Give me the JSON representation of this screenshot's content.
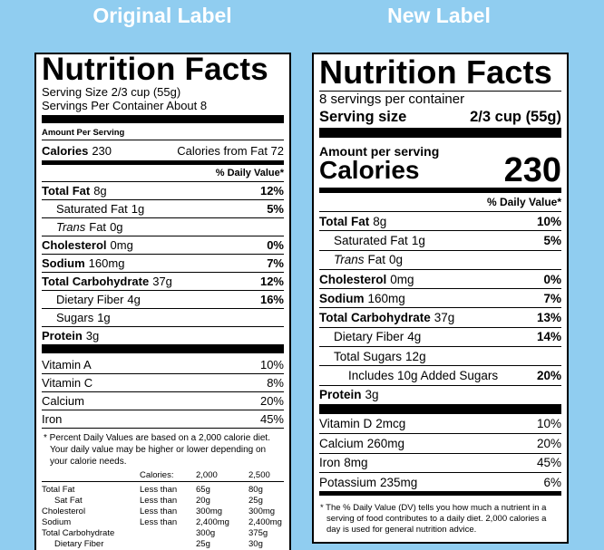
{
  "headers": {
    "original": "Original Label",
    "new": "New Label"
  },
  "original": {
    "title": "Nutrition Facts",
    "serving_size": "Serving Size 2/3 cup (55g)",
    "servings": "Servings Per Container About 8",
    "amount_per_serving": "Amount Per Serving",
    "calories_label": "Calories",
    "calories": "230",
    "calories_from_fat": "Calories from Fat 72",
    "dv_header": "% Daily Value*",
    "nutrients": [
      {
        "name": "Total Fat",
        "amount": "8g",
        "dv": "12%",
        "style": "main"
      },
      {
        "name": "Saturated Fat",
        "amount": "1g",
        "dv": "5%",
        "style": "sub"
      },
      {
        "italic": "Trans",
        "name": "Fat",
        "amount": "0g",
        "style": "sub"
      },
      {
        "name": "Cholesterol",
        "amount": "0mg",
        "dv": "0%",
        "style": "main"
      },
      {
        "name": "Sodium",
        "amount": "160mg",
        "dv": "7%",
        "style": "main"
      },
      {
        "name": "Total Carbohydrate",
        "amount": "37g",
        "dv": "12%",
        "style": "main"
      },
      {
        "name": "Dietary Fiber",
        "amount": "4g",
        "dv": "16%",
        "style": "sub"
      },
      {
        "name": "Sugars",
        "amount": "1g",
        "style": "sub"
      },
      {
        "name": "Protein",
        "amount": "3g",
        "style": "main"
      }
    ],
    "vitamins": [
      {
        "name": "Vitamin A",
        "dv": "10%"
      },
      {
        "name": "Vitamin C",
        "dv": "8%"
      },
      {
        "name": "Calcium",
        "dv": "20%"
      },
      {
        "name": "Iron",
        "dv": "45%"
      }
    ],
    "footnote": "* Percent Daily Values are based on a 2,000 calorie diet. Your daily value may be higher or lower depending on your calorie needs.",
    "dv_table": {
      "header": [
        "Calories:",
        "2,000",
        "2,500"
      ],
      "rows": [
        {
          "cells": [
            "Total Fat",
            "Less than",
            "65g",
            "80g"
          ]
        },
        {
          "cells": [
            "Sat Fat",
            "Less than",
            "20g",
            "25g"
          ],
          "indent": true
        },
        {
          "cells": [
            "Cholesterol",
            "Less than",
            "300mg",
            "300mg"
          ]
        },
        {
          "cells": [
            "Sodium",
            "Less than",
            "2,400mg",
            "2,400mg"
          ]
        },
        {
          "cells": [
            "Total Carbohydrate",
            null,
            "300g",
            "375g"
          ]
        },
        {
          "cells": [
            "Dietary Fiber",
            null,
            "25g",
            "30g"
          ],
          "indent": true
        }
      ]
    }
  },
  "new": {
    "title": "Nutrition Facts",
    "servings": "8 servings per container",
    "serving_size_label": "Serving size",
    "serving_size": "2/3 cup (55g)",
    "amount_per_serving": "Amount per serving",
    "calories_label": "Calories",
    "calories": "230",
    "dv_header": "% Daily Value*",
    "nutrients": [
      {
        "name": "Total Fat",
        "amount": "8g",
        "dv": "10%",
        "style": "main"
      },
      {
        "name": "Saturated Fat",
        "amount": "1g",
        "dv": "5%",
        "style": "sub"
      },
      {
        "italic": "Trans",
        "name": "Fat",
        "amount": "0g",
        "style": "sub"
      },
      {
        "name": "Cholesterol",
        "amount": "0mg",
        "dv": "0%",
        "style": "main"
      },
      {
        "name": "Sodium",
        "amount": "160mg",
        "dv": "7%",
        "style": "main"
      },
      {
        "name": "Total Carbohydrate",
        "amount": "37g",
        "dv": "13%",
        "style": "main"
      },
      {
        "name": "Dietary Fiber",
        "amount": "4g",
        "dv": "14%",
        "style": "sub"
      },
      {
        "name": "Total Sugars",
        "amount": "12g",
        "style": "sub"
      },
      {
        "name": "Includes 10g Added Sugars",
        "dv": "20%",
        "style": "subsub"
      },
      {
        "name": "Protein",
        "amount": "3g",
        "style": "main"
      }
    ],
    "vitamins": [
      {
        "name": "Vitamin D",
        "amount": "2mcg",
        "dv": "10%"
      },
      {
        "name": "Calcium",
        "amount": "260mg",
        "dv": "20%"
      },
      {
        "name": "Iron",
        "amount": "8mg",
        "dv": "45%"
      },
      {
        "name": "Potassium",
        "amount": "235mg",
        "dv": "6%"
      }
    ],
    "footnote": "* The % Daily Value (DV) tells you how much a nutrient in a serving of food contributes to a daily diet. 2,000 calories a day is used for general nutrition advice."
  }
}
